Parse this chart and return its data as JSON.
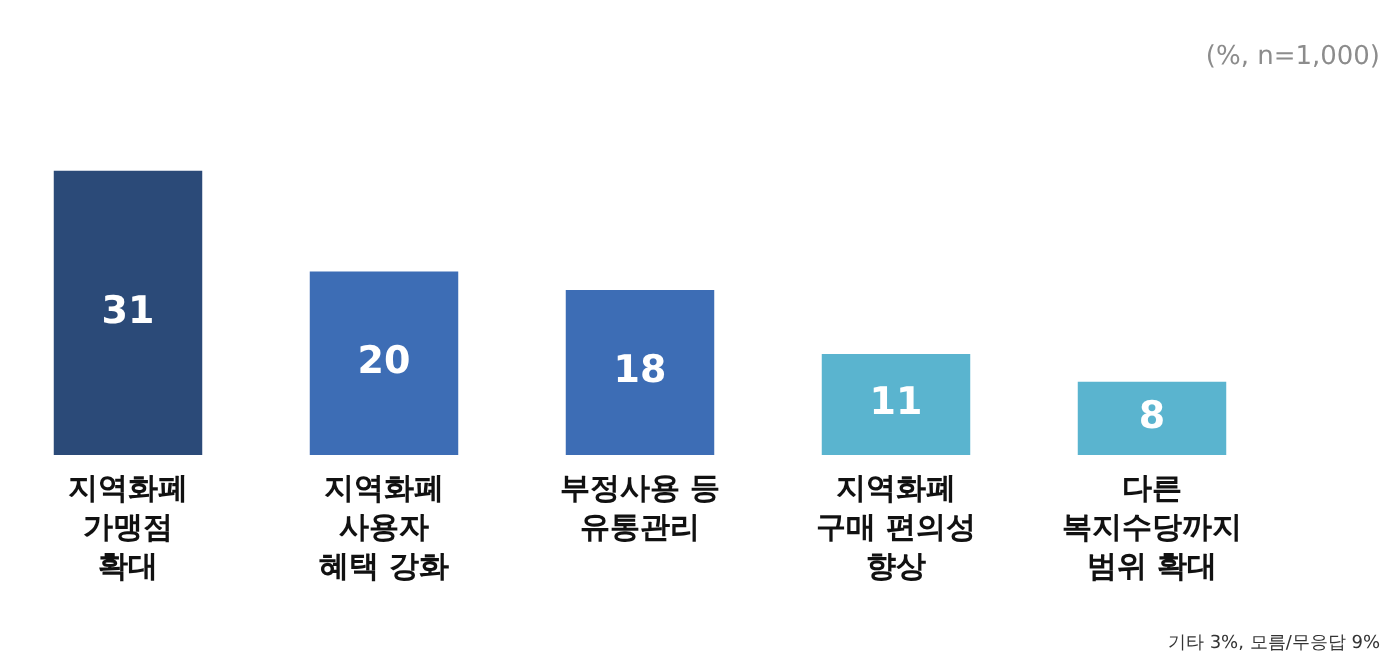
{
  "chart_data": {
    "type": "bar",
    "categories": [
      "지역화폐\n가맹점\n확대",
      "지역화폐\n사용자\n혜택 강화",
      "부정사용 등\n유통관리",
      "지역화폐\n구매 편의성\n향상",
      "다른\n복지수당까지\n범위 확대"
    ],
    "values": [
      31,
      20,
      18,
      11,
      8
    ],
    "colors": [
      "#2b4a78",
      "#3d6db5",
      "#3d6db5",
      "#5ab4cf",
      "#5ab4cf"
    ],
    "data_labels": true,
    "grid": false,
    "legend": false,
    "annotations": [
      "(%, n=1,000)",
      "기타 3%, 모름/무응답 9%"
    ]
  }
}
